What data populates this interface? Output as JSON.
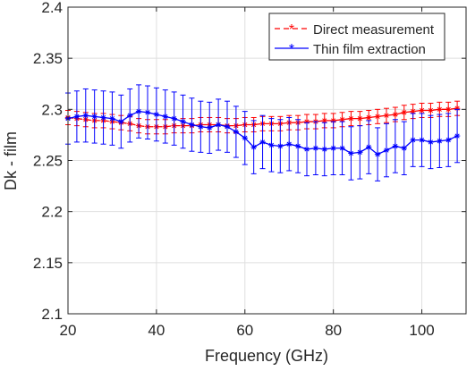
{
  "chart_data": {
    "type": "line",
    "title": "",
    "xlabel": "Frequency (GHz)",
    "ylabel": "Dk - film",
    "xlim": [
      20,
      110
    ],
    "ylim": [
      2.1,
      2.4
    ],
    "xticks": [
      20,
      40,
      60,
      80,
      100
    ],
    "xtick_labels": [
      "20",
      "40",
      "60",
      "80",
      "100"
    ],
    "yticks": [
      2.1,
      2.15,
      2.2,
      2.25,
      2.3,
      2.35,
      2.4
    ],
    "ytick_labels": [
      "2.1",
      "2.15",
      "2.2",
      "2.25",
      "2.3",
      "2.35",
      "2.4"
    ],
    "grid": true,
    "legend_position": "top-right",
    "series": [
      {
        "name": "Direct measurement",
        "color": "#ff0000",
        "line_style": "dashed",
        "marker": "asterisk",
        "x": [
          20,
          22,
          24,
          26,
          28,
          30,
          32,
          34,
          36,
          38,
          40,
          42,
          44,
          46,
          48,
          50,
          52,
          54,
          56,
          58,
          60,
          62,
          64,
          66,
          68,
          70,
          72,
          74,
          76,
          78,
          80,
          82,
          84,
          86,
          88,
          90,
          92,
          94,
          96,
          98,
          100,
          102,
          104,
          106,
          108
        ],
        "y": [
          2.292,
          2.291,
          2.29,
          2.289,
          2.289,
          2.288,
          2.287,
          2.286,
          2.284,
          2.283,
          2.283,
          2.283,
          2.284,
          2.284,
          2.284,
          2.285,
          2.285,
          2.285,
          2.284,
          2.284,
          2.285,
          2.285,
          2.286,
          2.286,
          2.286,
          2.287,
          2.287,
          2.288,
          2.288,
          2.289,
          2.289,
          2.29,
          2.291,
          2.291,
          2.292,
          2.293,
          2.294,
          2.295,
          2.297,
          2.298,
          2.299,
          2.299,
          2.3,
          2.3,
          2.301
        ],
        "error": [
          0.007,
          0.007,
          0.007,
          0.007,
          0.007,
          0.007,
          0.007,
          0.007,
          0.007,
          0.007,
          0.007,
          0.007,
          0.007,
          0.007,
          0.007,
          0.007,
          0.007,
          0.007,
          0.007,
          0.007,
          0.007,
          0.007,
          0.007,
          0.007,
          0.007,
          0.007,
          0.007,
          0.007,
          0.007,
          0.007,
          0.007,
          0.007,
          0.007,
          0.007,
          0.007,
          0.007,
          0.007,
          0.007,
          0.007,
          0.007,
          0.007,
          0.007,
          0.007,
          0.007,
          0.007
        ]
      },
      {
        "name": "Thin film extraction",
        "color": "#0000ff",
        "line_style": "solid",
        "marker": "asterisk",
        "x": [
          20,
          22,
          24,
          26,
          28,
          30,
          32,
          34,
          36,
          38,
          40,
          42,
          44,
          46,
          48,
          50,
          52,
          54,
          56,
          58,
          60,
          62,
          64,
          66,
          68,
          70,
          72,
          74,
          76,
          78,
          80,
          82,
          84,
          86,
          88,
          90,
          92,
          94,
          96,
          98,
          100,
          102,
          104,
          106,
          108
        ],
        "y": [
          2.291,
          2.293,
          2.294,
          2.293,
          2.292,
          2.291,
          2.288,
          2.294,
          2.298,
          2.297,
          2.295,
          2.293,
          2.291,
          2.288,
          2.285,
          2.283,
          2.282,
          2.285,
          2.283,
          2.278,
          2.272,
          2.263,
          2.268,
          2.265,
          2.264,
          2.266,
          2.264,
          2.261,
          2.262,
          2.261,
          2.262,
          2.262,
          2.257,
          2.258,
          2.263,
          2.256,
          2.26,
          2.264,
          2.262,
          2.27,
          2.27,
          2.268,
          2.269,
          2.27,
          2.274
        ],
        "error": [
          0.025,
          0.025,
          0.026,
          0.026,
          0.026,
          0.026,
          0.026,
          0.026,
          0.026,
          0.026,
          0.026,
          0.026,
          0.026,
          0.026,
          0.026,
          0.025,
          0.025,
          0.025,
          0.025,
          0.025,
          0.026,
          0.026,
          0.026,
          0.026,
          0.026,
          0.026,
          0.026,
          0.026,
          0.026,
          0.026,
          0.026,
          0.026,
          0.026,
          0.026,
          0.026,
          0.026,
          0.026,
          0.026,
          0.026,
          0.026,
          0.026,
          0.026,
          0.026,
          0.026,
          0.026
        ]
      }
    ]
  }
}
